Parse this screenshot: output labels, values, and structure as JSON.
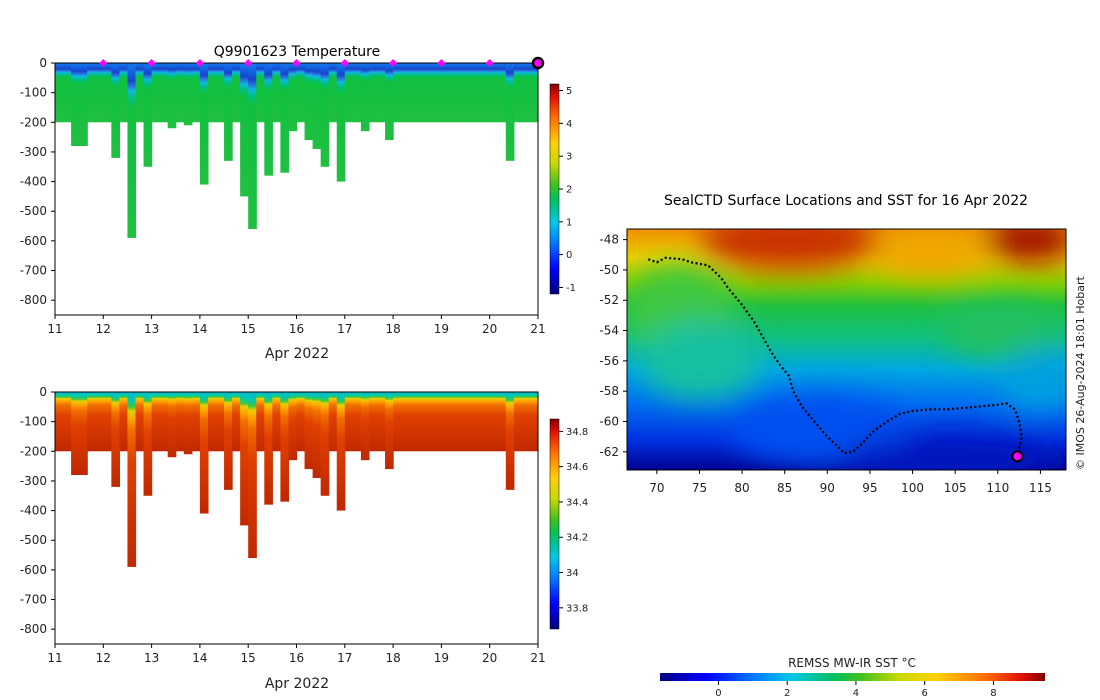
{
  "chart_data": [
    {
      "type": "heatmap",
      "title": "Q9901623  Temperature",
      "xlabel": "Apr 2022",
      "ylabel": "",
      "xlim": [
        11,
        21
      ],
      "ylim": [
        -850,
        0
      ],
      "x_ticks": [
        "11",
        "12",
        "13",
        "14",
        "15",
        "16",
        "17",
        "18",
        "19",
        "20",
        "21"
      ],
      "y_ticks": [
        "0",
        "-100",
        "-200",
        "-300",
        "-400",
        "-500",
        "-600",
        "-700",
        "-800"
      ],
      "colorbar": {
        "min": -1.2,
        "max": 5.2,
        "ticks": [
          "-1",
          "0",
          "1",
          "2",
          "3",
          "4",
          "5"
        ]
      },
      "surface_markers": [
        12,
        13,
        14,
        15,
        16,
        17,
        18,
        19,
        20
      ],
      "current_position_marker": 21,
      "profile_max_depths": [
        200,
        200,
        280,
        280,
        200,
        200,
        200,
        320,
        200,
        590,
        200,
        350,
        200,
        200,
        220,
        200,
        210,
        200,
        410,
        200,
        200,
        330,
        200,
        450,
        560,
        200,
        380,
        200,
        370,
        230,
        200,
        260,
        290,
        350,
        200,
        400,
        200,
        200,
        230,
        200,
        200,
        260,
        200,
        200,
        200,
        200,
        200,
        200,
        200,
        200,
        200,
        200,
        200,
        200,
        200,
        200,
        330,
        200,
        200,
        200
      ]
    },
    {
      "type": "heatmap",
      "title": "",
      "xlabel": "Apr 2022",
      "ylabel": "",
      "xlim": [
        11,
        21
      ],
      "ylim": [
        -850,
        0
      ],
      "x_ticks": [
        "11",
        "12",
        "13",
        "14",
        "15",
        "16",
        "17",
        "18",
        "19",
        "20",
        "21"
      ],
      "y_ticks": [
        "0",
        "-100",
        "-200",
        "-300",
        "-400",
        "-500",
        "-600",
        "-700",
        "-800"
      ],
      "colorbar": {
        "min": 33.68,
        "max": 34.87,
        "ticks": [
          "33.8",
          "34",
          "34.2",
          "34.4",
          "34.6",
          "34.8"
        ]
      }
    },
    {
      "type": "heatmap",
      "title": "SealCTD Surface Locations and SST for 16 Apr 2022",
      "xlim": [
        66.5,
        118
      ],
      "ylim": [
        -63.2,
        -47.3
      ],
      "x_ticks": [
        "70",
        "75",
        "80",
        "85",
        "90",
        "95",
        "100",
        "105",
        "110",
        "115"
      ],
      "y_ticks": [
        "-48",
        "-50",
        "-52",
        "-54",
        "-56",
        "-58",
        "-60",
        "-62"
      ],
      "colorbar": {
        "label": "REMSS MW-IR SST °C",
        "min": -1.7,
        "max": 9.5,
        "ticks": [
          "0",
          "2",
          "4",
          "6",
          "8"
        ]
      },
      "track": [
        [
          69,
          -49.3
        ],
        [
          70,
          -49.5
        ],
        [
          71,
          -49.2
        ],
        [
          73,
          -49.3
        ],
        [
          74,
          -49.5
        ],
        [
          76,
          -49.7
        ],
        [
          77.5,
          -50.5
        ],
        [
          78.5,
          -51.3
        ],
        [
          80,
          -52.3
        ],
        [
          81.5,
          -53.5
        ],
        [
          82.5,
          -54.5
        ],
        [
          83.5,
          -55.5
        ],
        [
          84.5,
          -56.3
        ],
        [
          85.5,
          -57
        ],
        [
          86,
          -58
        ],
        [
          87,
          -59
        ],
        [
          88.5,
          -60
        ],
        [
          90,
          -61
        ],
        [
          91.5,
          -61.8
        ],
        [
          92,
          -62.1
        ],
        [
          93,
          -62
        ],
        [
          94,
          -61.5
        ],
        [
          95.5,
          -60.6
        ],
        [
          97,
          -60
        ],
        [
          98.5,
          -59.5
        ],
        [
          100,
          -59.3
        ],
        [
          102,
          -59.2
        ],
        [
          104,
          -59.2
        ],
        [
          106,
          -59.1
        ],
        [
          108,
          -59
        ],
        [
          110,
          -58.9
        ],
        [
          111,
          -58.8
        ],
        [
          112,
          -59.2
        ],
        [
          112.5,
          -60
        ],
        [
          112.8,
          -61
        ],
        [
          112.4,
          -62
        ]
      ],
      "current_position": [
        112.3,
        -62.3
      ],
      "credit": "© IMOS 26-Aug-2024 18:01 Hobart"
    }
  ]
}
